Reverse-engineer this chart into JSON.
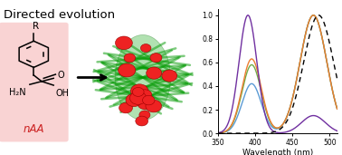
{
  "title": "Directed evolution",
  "naa_label": "nAA",
  "xlabel": "Wavelength (nm)",
  "xlim": [
    350,
    510
  ],
  "ylim": [
    0,
    1.05
  ],
  "yticks": [
    0,
    0.2,
    0.4,
    0.6,
    0.8,
    1.0
  ],
  "xticks": [
    350,
    400,
    450,
    500
  ],
  "background_color": "#ffffff",
  "pink_bg_color": "#f5b0b0",
  "lines": {
    "blue": {
      "color": "#5b9bd5",
      "p1_mu": 395,
      "p1_amp": 0.42,
      "p2_mu": 478,
      "p2_amp": 1.0,
      "p1_sig": 13,
      "p2_sig": 18
    },
    "green": {
      "color": "#70ad47",
      "p1_mu": 395,
      "p1_amp": 0.58,
      "p2_mu": 478,
      "p2_amp": 1.0,
      "p1_sig": 13,
      "p2_sig": 18
    },
    "orange": {
      "color": "#ed7d31",
      "p1_mu": 395,
      "p1_amp": 0.63,
      "p2_mu": 478,
      "p2_amp": 1.0,
      "p1_sig": 13,
      "p2_sig": 18
    },
    "purple": {
      "color": "#7030a0",
      "p1_mu": 390,
      "p1_amp": 1.0,
      "p2_mu": 478,
      "p2_amp": 0.15,
      "p1_sig": 12,
      "p2_sig": 16
    },
    "dashed": {
      "color": "#000000",
      "p1_mu": 485,
      "p1_amp": 1.0,
      "p2_mu": 999,
      "p2_amp": 0.0,
      "p1_sig": 20,
      "p2_sig": 1
    }
  },
  "R_label": "R",
  "H2N_label": "H₂N",
  "O_label": "O",
  "OH_label": "OH"
}
